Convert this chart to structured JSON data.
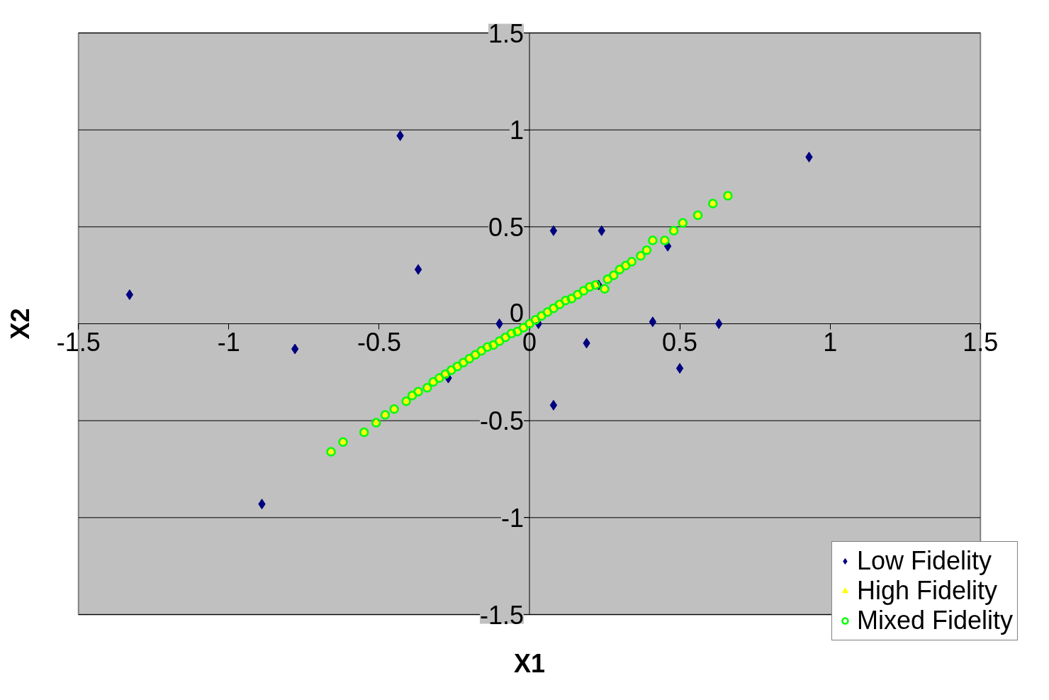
{
  "chart_data": {
    "type": "scatter",
    "xlabel": "X1",
    "ylabel": "X2",
    "xlim": [
      -1.5,
      1.5
    ],
    "ylim": [
      -1.5,
      1.5
    ],
    "xticks": [
      -1.5,
      -1,
      -0.5,
      0,
      0.5,
      1,
      1.5
    ],
    "yticks": [
      -1.5,
      -1,
      -0.5,
      0,
      0.5,
      1,
      1.5
    ],
    "grid": "y",
    "legend": "bottom right",
    "series": [
      {
        "name": "Low Fidelity",
        "color": "#000080",
        "marker": "diamond",
        "x": [
          -1.33,
          -0.43,
          -0.37,
          -0.78,
          -0.89,
          -0.27,
          -0.1,
          0.03,
          0.08,
          0.24,
          0.23,
          0.19,
          0.08,
          0.41,
          0.46,
          0.5,
          0.63,
          0.93
        ],
        "values": [
          0.15,
          0.97,
          0.28,
          -0.13,
          -0.93,
          -0.28,
          0,
          0,
          0.48,
          0.48,
          0.2,
          -0.1,
          -0.42,
          0.01,
          0.4,
          -0.23,
          0,
          0.86
        ]
      },
      {
        "name": "High Fidelity",
        "color": "#ffff00",
        "marker": "triangle",
        "x": [
          -0.66,
          -0.62,
          -0.55,
          -0.51,
          -0.48,
          -0.45,
          -0.41,
          -0.39,
          -0.37,
          -0.34,
          -0.32,
          -0.3,
          -0.28,
          -0.26,
          -0.24,
          -0.22,
          -0.2,
          -0.18,
          -0.16,
          -0.14,
          -0.12,
          -0.1,
          -0.08,
          -0.06,
          -0.04,
          -0.02,
          0,
          0.02,
          0.04,
          0.06,
          0.08,
          0.1,
          0.12,
          0.14,
          0.16,
          0.18,
          0.2,
          0.22,
          0.25,
          0.26,
          0.28,
          0.3,
          0.32,
          0.34,
          0.37,
          0.39,
          0.41,
          0.45,
          0.48,
          0.51,
          0.56,
          0.61,
          0.66
        ],
        "values": [
          -0.66,
          -0.61,
          -0.56,
          -0.51,
          -0.47,
          -0.44,
          -0.4,
          -0.37,
          -0.35,
          -0.33,
          -0.3,
          -0.28,
          -0.26,
          -0.24,
          -0.22,
          -0.2,
          -0.18,
          -0.16,
          -0.14,
          -0.12,
          -0.11,
          -0.09,
          -0.07,
          -0.05,
          -0.04,
          -0.02,
          0,
          0.02,
          0.04,
          0.06,
          0.08,
          0.1,
          0.12,
          0.13,
          0.15,
          0.17,
          0.19,
          0.2,
          0.18,
          0.23,
          0.25,
          0.28,
          0.3,
          0.32,
          0.35,
          0.38,
          0.43,
          0.43,
          0.48,
          0.52,
          0.56,
          0.62,
          0.66
        ]
      },
      {
        "name": "Mixed Fidelity",
        "color": "#00ff00",
        "marker": "circle",
        "x": [
          -0.66,
          -0.62,
          -0.55,
          -0.51,
          -0.48,
          -0.45,
          -0.41,
          -0.39,
          -0.37,
          -0.34,
          -0.32,
          -0.3,
          -0.28,
          -0.26,
          -0.24,
          -0.22,
          -0.2,
          -0.18,
          -0.16,
          -0.14,
          -0.12,
          -0.1,
          -0.08,
          -0.06,
          -0.04,
          -0.02,
          0,
          0.02,
          0.04,
          0.06,
          0.08,
          0.1,
          0.12,
          0.14,
          0.16,
          0.18,
          0.2,
          0.22,
          0.25,
          0.26,
          0.28,
          0.3,
          0.32,
          0.34,
          0.37,
          0.39,
          0.41,
          0.45,
          0.48,
          0.51,
          0.56,
          0.61,
          0.66
        ],
        "values": [
          -0.66,
          -0.61,
          -0.56,
          -0.51,
          -0.47,
          -0.44,
          -0.4,
          -0.37,
          -0.35,
          -0.33,
          -0.3,
          -0.28,
          -0.26,
          -0.24,
          -0.22,
          -0.2,
          -0.18,
          -0.16,
          -0.14,
          -0.12,
          -0.11,
          -0.09,
          -0.07,
          -0.05,
          -0.04,
          -0.02,
          0,
          0.02,
          0.04,
          0.06,
          0.08,
          0.1,
          0.12,
          0.13,
          0.15,
          0.17,
          0.19,
          0.2,
          0.18,
          0.23,
          0.25,
          0.28,
          0.3,
          0.32,
          0.35,
          0.38,
          0.43,
          0.43,
          0.48,
          0.52,
          0.56,
          0.62,
          0.66
        ]
      }
    ]
  }
}
